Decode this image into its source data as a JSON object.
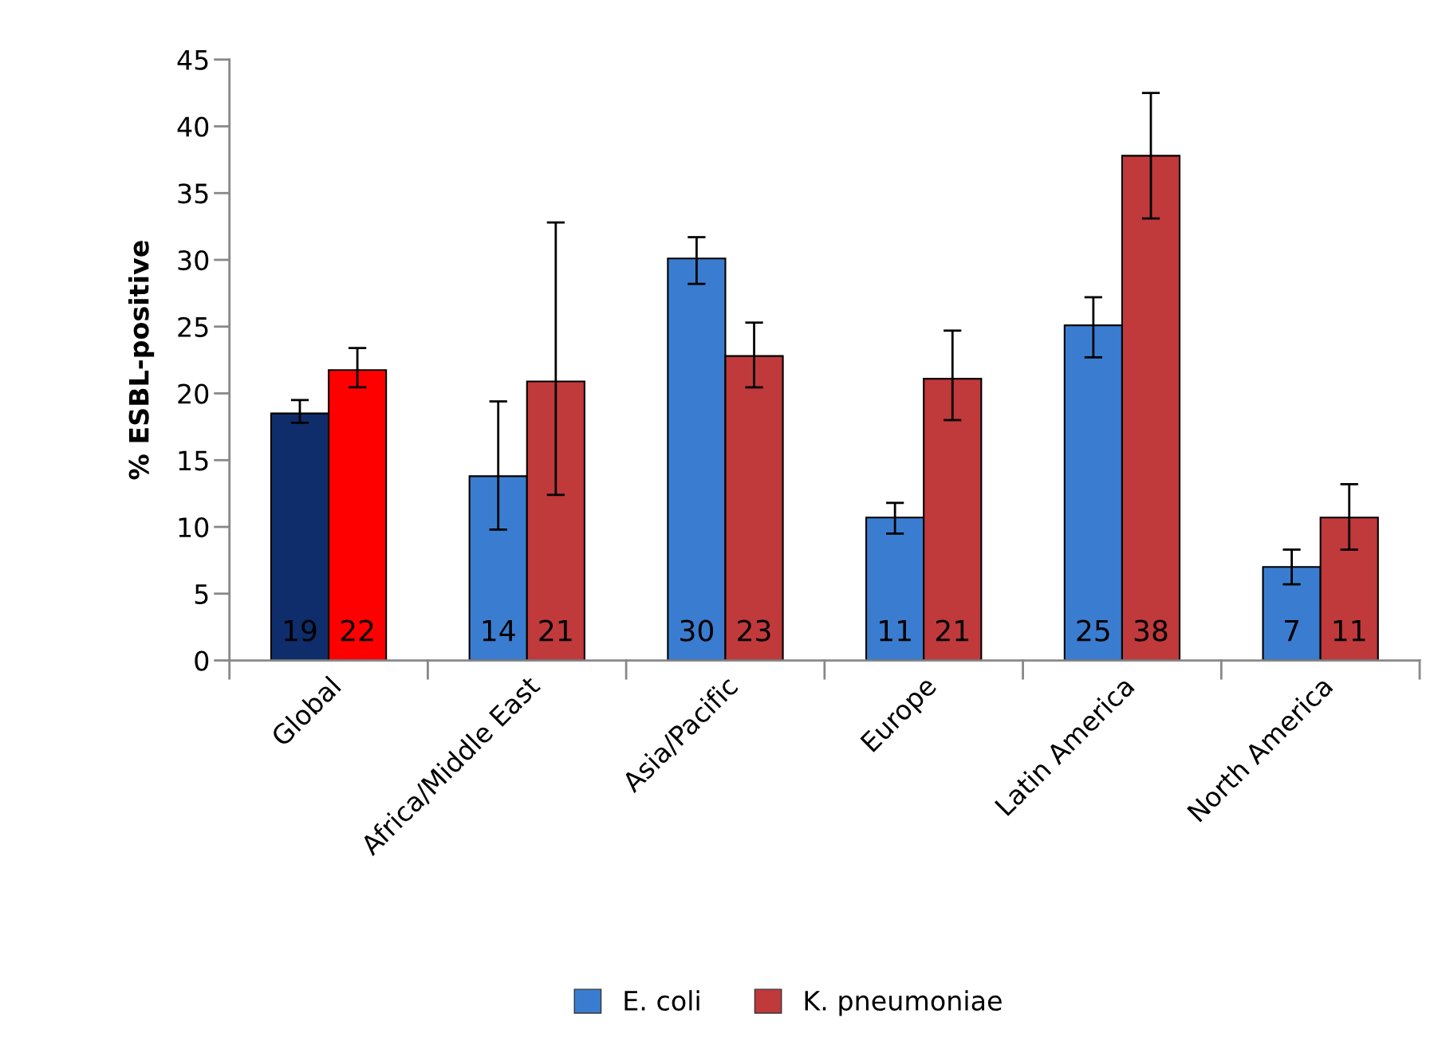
{
  "chart_data": {
    "type": "bar",
    "ylabel": "% ESBL-positive",
    "categories": [
      "Global",
      "Africa/Middle East",
      "Asia/Pacific",
      "Europe",
      "Latin America",
      "North America"
    ],
    "series": [
      {
        "name": "E. coli",
        "color": "#3a7dd0",
        "colors": [
          "#0f2d6b",
          "#3a7dd0",
          "#3a7dd0",
          "#3a7dd0",
          "#3a7dd0",
          "#3a7dd0"
        ],
        "values": [
          18.5,
          13.8,
          30.1,
          10.7,
          25.1,
          7.0
        ],
        "errors": [
          [
            17.8,
            19.5
          ],
          [
            9.8,
            19.4
          ],
          [
            28.2,
            31.7
          ],
          [
            9.5,
            11.8
          ],
          [
            22.7,
            27.2
          ],
          [
            5.7,
            8.3
          ]
        ],
        "value_labels": [
          "19",
          "14",
          "30",
          "11",
          "25",
          "7"
        ]
      },
      {
        "name": "K. pneumoniae",
        "color": "#c0393b",
        "colors": [
          "#ff0000",
          "#c0393b",
          "#c0393b",
          "#c0393b",
          "#c0393b",
          "#c0393b"
        ],
        "values": [
          21.75,
          20.9,
          22.8,
          21.1,
          37.8,
          10.7
        ],
        "errors": [
          [
            20.45,
            23.4
          ],
          [
            12.4,
            32.8
          ],
          [
            20.45,
            25.3
          ],
          [
            18.0,
            24.7
          ],
          [
            33.1,
            42.5
          ],
          [
            8.3,
            13.2
          ]
        ],
        "value_labels": [
          "22",
          "21",
          "23",
          "21",
          "38",
          "11"
        ]
      }
    ],
    "ylim": [
      0,
      45
    ],
    "yticks": [
      0,
      5,
      10,
      15,
      20,
      25,
      30,
      35,
      40,
      45
    ],
    "grid": false,
    "legend": "bottom"
  }
}
